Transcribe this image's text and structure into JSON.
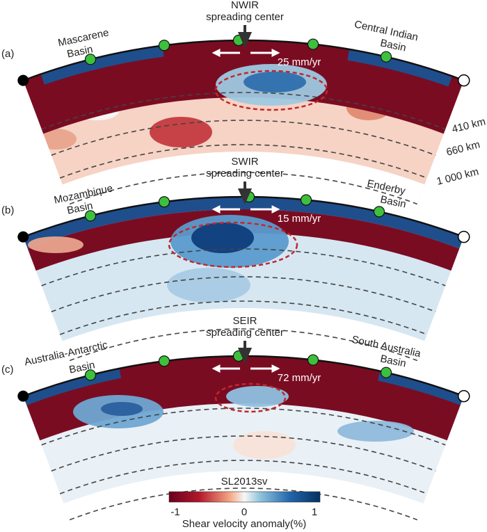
{
  "panels": [
    {
      "label": "(a)",
      "ridge_name": "NWIR",
      "ridge_subtitle": "spreading center",
      "spreading_rate": "25 mm/yr",
      "left_basin": [
        "Mascarene",
        "Basin"
      ],
      "right_basin": [
        "Central Indian",
        "Basin"
      ]
    },
    {
      "label": "(b)",
      "ridge_name": "SWIR",
      "ridge_subtitle": "spreading center",
      "spreading_rate": "15 mm/yr",
      "left_basin": [
        "Mozambique",
        "Basin"
      ],
      "right_basin": [
        "Enderby",
        "Basin"
      ]
    },
    {
      "label": "(c)",
      "ridge_name": "SEIR",
      "ridge_subtitle": "spreading center",
      "spreading_rate": "72 mm/yr",
      "left_basin": [
        "Australia-Antarctic",
        "Basin"
      ],
      "right_basin": [
        "South Australia",
        "Basin"
      ]
    }
  ],
  "depth_labels": [
    "410 km",
    "660 km",
    "1 000 km"
  ],
  "colorbar": {
    "title": "SL2013sv",
    "ticks": [
      "-1",
      "0",
      "1"
    ],
    "label": "Shear velocity anomaly(%)"
  }
}
